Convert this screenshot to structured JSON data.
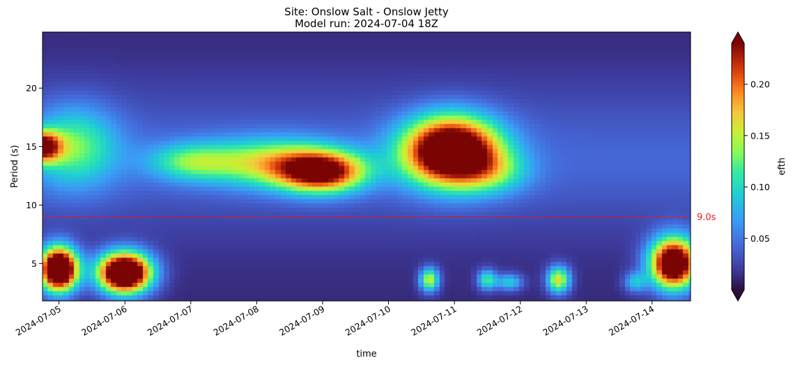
{
  "chart_data": {
    "type": "heatmap",
    "title_line1": "Site: Onslow Salt - Onslow Jetty",
    "title_line2": "Model run: 2024-07-04 18Z",
    "xlabel": "time",
    "ylabel": "Period (s)",
    "colorbar_label": "efth",
    "x_ticks": [
      "2024-07-05",
      "2024-07-06",
      "2024-07-07",
      "2024-07-08",
      "2024-07-09",
      "2024-07-10",
      "2024-07-11",
      "2024-07-12",
      "2024-07-13",
      "2024-07-14"
    ],
    "x_range": [
      "2024-07-04T18:00",
      "2024-07-14T14:00"
    ],
    "y_ticks": [
      "5",
      "10",
      "15",
      "20"
    ],
    "y_range": [
      1.8,
      24.8
    ],
    "colorbar_ticks": [
      "0.05",
      "0.10",
      "0.15",
      "0.20"
    ],
    "colorbar_range": [
      0.0,
      0.24
    ],
    "colormap": "turbo",
    "reference_line": {
      "period": 9.0,
      "label": "9.0s",
      "color": "#e41a1c",
      "style": "dashed"
    },
    "blobs": [
      {
        "t": "2024-07-04T18:00",
        "period": 15.0,
        "dt": 0.2,
        "dp": 0.9,
        "value": 0.2
      },
      {
        "t": "2024-07-05T06:00",
        "period": 15.0,
        "dt": 0.45,
        "dp": 2.4,
        "value": 0.09
      },
      {
        "t": "2024-07-05T00:00",
        "period": 4.5,
        "dt": 0.2,
        "dp": 1.3,
        "value": 0.34
      },
      {
        "t": "2024-07-06T00:00",
        "period": 4.2,
        "dt": 0.28,
        "dp": 1.2,
        "value": 0.34
      },
      {
        "t": "2024-07-07T00:00",
        "period": 13.7,
        "dt": 0.45,
        "dp": 1.1,
        "value": 0.08
      },
      {
        "t": "2024-07-08T06:00",
        "period": 13.6,
        "dt": 0.7,
        "dp": 1.4,
        "value": 0.12
      },
      {
        "t": "2024-07-09T00:00",
        "period": 12.8,
        "dt": 0.45,
        "dp": 1.2,
        "value": 0.2
      },
      {
        "t": "2024-07-10T23:00",
        "period": 14.6,
        "dt": 0.5,
        "dp": 2.0,
        "value": 0.3
      },
      {
        "t": "2024-07-11T14:00",
        "period": 12.8,
        "dt": 0.4,
        "dp": 1.3,
        "value": 0.06
      },
      {
        "t": "2024-07-10T15:00",
        "period": 3.6,
        "dt": 0.1,
        "dp": 0.7,
        "value": 0.14
      },
      {
        "t": "2024-07-11T12:00",
        "period": 3.6,
        "dt": 0.1,
        "dp": 0.6,
        "value": 0.1
      },
      {
        "t": "2024-07-11T20:00",
        "period": 3.4,
        "dt": 0.14,
        "dp": 0.5,
        "value": 0.08
      },
      {
        "t": "2024-07-12T14:00",
        "period": 3.6,
        "dt": 0.12,
        "dp": 0.8,
        "value": 0.15
      },
      {
        "t": "2024-07-13T18:00",
        "period": 3.4,
        "dt": 0.12,
        "dp": 0.6,
        "value": 0.07
      },
      {
        "t": "2024-07-14T08:00",
        "period": 5.0,
        "dt": 0.25,
        "dp": 1.5,
        "value": 0.3
      }
    ]
  }
}
